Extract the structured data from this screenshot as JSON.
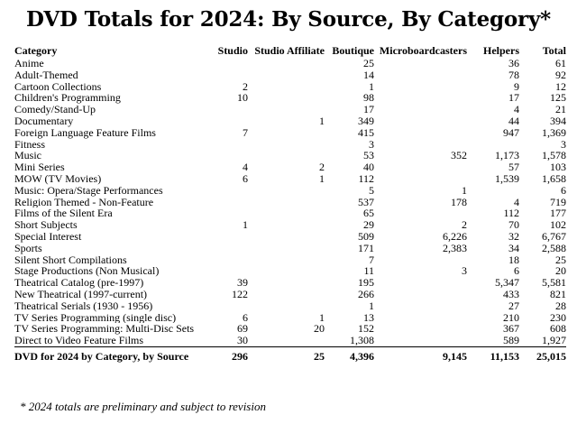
{
  "title": "DVD Totals for 2024: By Source, By Category*",
  "headers": [
    "Category",
    "Studio",
    "Studio Affiliate",
    "Boutique",
    "Microboardcasters",
    "Helpers",
    "Total"
  ],
  "rows": [
    [
      "Anime",
      "",
      "",
      "25",
      "",
      "36",
      "61"
    ],
    [
      "Adult-Themed",
      "",
      "",
      "14",
      "",
      "78",
      "92"
    ],
    [
      "Cartoon Collections",
      "2",
      "",
      "1",
      "",
      "9",
      "12"
    ],
    [
      "Children's Programming",
      "10",
      "",
      "98",
      "",
      "17",
      "125"
    ],
    [
      "Comedy/Stand-Up",
      "",
      "",
      "17",
      "",
      "4",
      "21"
    ],
    [
      "Documentary",
      "",
      "1",
      "349",
      "",
      "44",
      "394"
    ],
    [
      "Foreign Language Feature Films",
      "7",
      "",
      "415",
      "",
      "947",
      "1,369"
    ],
    [
      "Fitness",
      "",
      "",
      "3",
      "",
      "",
      "3"
    ],
    [
      "Music",
      "",
      "",
      "53",
      "352",
      "1,173",
      "1,578"
    ],
    [
      "Mini Series",
      "4",
      "2",
      "40",
      "",
      "57",
      "103"
    ],
    [
      "MOW (TV Movies)",
      "6",
      "1",
      "112",
      "",
      "1,539",
      "1,658"
    ],
    [
      "Music: Opera/Stage Performances",
      "",
      "",
      "5",
      "1",
      "",
      "6"
    ],
    [
      "Religion Themed - Non-Feature",
      "",
      "",
      "537",
      "178",
      "4",
      "719"
    ],
    [
      "Films of the Silent Era",
      "",
      "",
      "65",
      "",
      "112",
      "177"
    ],
    [
      "Short Subjects",
      "1",
      "",
      "29",
      "2",
      "70",
      "102"
    ],
    [
      "Special Interest",
      "",
      "",
      "509",
      "6,226",
      "32",
      "6,767"
    ],
    [
      "Sports",
      "",
      "",
      "171",
      "2,383",
      "34",
      "2,588"
    ],
    [
      "Silent Short Compilations",
      "",
      "",
      "7",
      "",
      "18",
      "25"
    ],
    [
      "Stage Productions (Non Musical)",
      "",
      "",
      "11",
      "3",
      "6",
      "20"
    ],
    [
      "Theatrical Catalog (pre-1997)",
      "39",
      "",
      "195",
      "",
      "5,347",
      "5,581"
    ],
    [
      "New Theatrical (1997-current)",
      "122",
      "",
      "266",
      "",
      "433",
      "821"
    ],
    [
      "Theatrical Serials (1930 - 1956)",
      "",
      "",
      "1",
      "",
      "27",
      "28"
    ],
    [
      "TV Series Programming (single disc)",
      "6",
      "1",
      "13",
      "",
      "210",
      "230"
    ],
    [
      "TV Series Programming: Multi-Disc Sets",
      "69",
      "20",
      "152",
      "",
      "367",
      "608"
    ],
    [
      "Direct to Video Feature Films",
      "30",
      "",
      "1,308",
      "",
      "589",
      "1,927"
    ]
  ],
  "total_row": [
    "DVD for 2024 by Category, by Source",
    "296",
    "25",
    "4,396",
    "9,145",
    "11,153",
    "25,015"
  ],
  "footnote": "* 2024 totals are preliminary and subject to revision"
}
